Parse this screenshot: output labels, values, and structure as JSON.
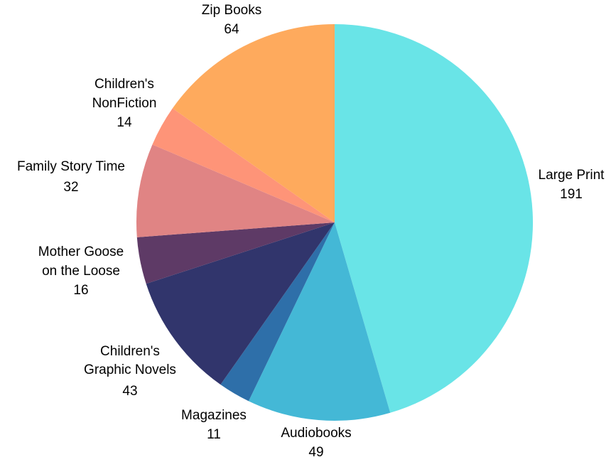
{
  "chart_data": {
    "type": "pie",
    "title": "",
    "slices": [
      {
        "label": "Large Print",
        "value": 191,
        "color": "#69E4E7"
      },
      {
        "label": "Audiobooks",
        "value": 49,
        "color": "#44B8D6"
      },
      {
        "label": "Magazines",
        "value": 11,
        "color": "#2E6FA9"
      },
      {
        "label": "Children's Graphic Novels",
        "value": 43,
        "color": "#31356C"
      },
      {
        "label": "Mother Goose on the Loose",
        "value": 16,
        "color": "#5E3A66"
      },
      {
        "label": "Family Story Time",
        "value": 32,
        "color": "#E08484"
      },
      {
        "label": "Children's NonFiction",
        "value": 14,
        "color": "#FE9478"
      },
      {
        "label": "Zip Books",
        "value": 64,
        "color": "#FEAA5D"
      }
    ],
    "direction": "clockwise",
    "start_angle": "12 o'clock",
    "legend": "none"
  }
}
